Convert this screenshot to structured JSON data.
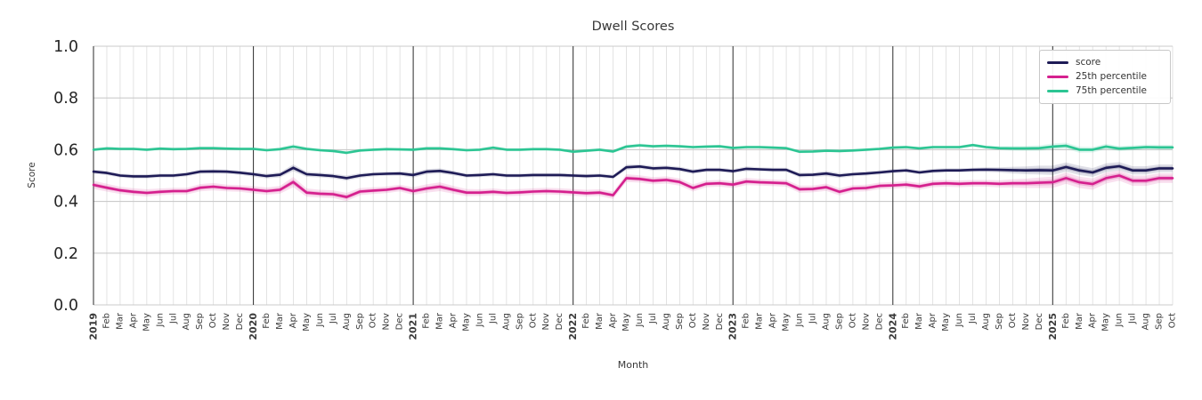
{
  "meta": {
    "title": "Dwell Scores",
    "xlabel": "Month",
    "ylabel": "Score"
  },
  "colors": {
    "score": "#1e1b56",
    "p25": "#d5208e",
    "p75": "#2cc593",
    "grid_minor": "#dcdcdc",
    "grid_major_h": "#cbcbcb",
    "year_line": "#3d3d3d",
    "tick_text": "#3a3a3a",
    "ytick_text": "#262626"
  },
  "chart_data": {
    "type": "line",
    "title": "Dwell Scores",
    "xlabel": "Month",
    "ylabel": "Score",
    "ylim": [
      0.0,
      1.0
    ],
    "yticks": [
      0.0,
      0.2,
      0.4,
      0.6,
      0.8,
      1.0
    ],
    "grid": true,
    "legend_position": "upper right",
    "x_labels": [
      "2019",
      "Feb",
      "Mar",
      "Apr",
      "May",
      "Jun",
      "Jul",
      "Aug",
      "Sep",
      "Oct",
      "Nov",
      "Dec",
      "2020",
      "Feb",
      "Mar",
      "Apr",
      "May",
      "Jun",
      "Jul",
      "Aug",
      "Sep",
      "Oct",
      "Nov",
      "Dec",
      "2021",
      "Feb",
      "Mar",
      "Apr",
      "May",
      "Jun",
      "Jul",
      "Aug",
      "Sep",
      "Oct",
      "Nov",
      "Dec",
      "2022",
      "Feb",
      "Mar",
      "Apr",
      "May",
      "Jun",
      "Jul",
      "Aug",
      "Sep",
      "Oct",
      "Nov",
      "Dec",
      "2023",
      "Feb",
      "Mar",
      "Apr",
      "May",
      "Jun",
      "Jul",
      "Aug",
      "Sep",
      "Oct",
      "Nov",
      "Dec",
      "2024",
      "Feb",
      "Mar",
      "Apr",
      "May",
      "Jun",
      "Jul",
      "Aug",
      "Sep",
      "Oct",
      "Nov",
      "Dec",
      "2025",
      "Feb",
      "Mar",
      "Apr",
      "May",
      "Jun",
      "Jul",
      "Aug",
      "Sep",
      "Oct"
    ],
    "series": [
      {
        "name": "score",
        "color": "#1e1b56",
        "values": [
          0.515,
          0.51,
          0.5,
          0.497,
          0.497,
          0.5,
          0.5,
          0.505,
          0.515,
          0.516,
          0.515,
          0.511,
          0.505,
          0.498,
          0.503,
          0.53,
          0.505,
          0.502,
          0.498,
          0.49,
          0.5,
          0.505,
          0.507,
          0.508,
          0.502,
          0.515,
          0.518,
          0.51,
          0.5,
          0.502,
          0.505,
          0.5,
          0.5,
          0.502,
          0.502,
          0.502,
          0.5,
          0.498,
          0.5,
          0.495,
          0.532,
          0.535,
          0.528,
          0.53,
          0.525,
          0.515,
          0.522,
          0.522,
          0.517,
          0.526,
          0.524,
          0.522,
          0.522,
          0.502,
          0.503,
          0.508,
          0.5,
          0.505,
          0.508,
          0.512,
          0.517,
          0.52,
          0.512,
          0.518,
          0.52,
          0.52,
          0.522,
          0.523,
          0.522,
          0.521,
          0.52,
          0.521,
          0.52,
          0.533,
          0.52,
          0.512,
          0.53,
          0.536,
          0.52,
          0.52,
          0.528,
          0.528
        ],
        "band_halfwidth": [
          0.008,
          0.008,
          0.008,
          0.008,
          0.008,
          0.008,
          0.008,
          0.008,
          0.008,
          0.008,
          0.008,
          0.008,
          0.009,
          0.009,
          0.01,
          0.013,
          0.01,
          0.009,
          0.009,
          0.01,
          0.009,
          0.008,
          0.008,
          0.008,
          0.01,
          0.01,
          0.01,
          0.009,
          0.008,
          0.008,
          0.008,
          0.008,
          0.008,
          0.008,
          0.008,
          0.008,
          0.008,
          0.008,
          0.008,
          0.008,
          0.01,
          0.009,
          0.009,
          0.009,
          0.009,
          0.009,
          0.008,
          0.008,
          0.008,
          0.009,
          0.008,
          0.008,
          0.008,
          0.009,
          0.008,
          0.01,
          0.009,
          0.008,
          0.008,
          0.008,
          0.008,
          0.008,
          0.008,
          0.008,
          0.008,
          0.008,
          0.008,
          0.009,
          0.01,
          0.013,
          0.015,
          0.017,
          0.018,
          0.018,
          0.018,
          0.017,
          0.017,
          0.016,
          0.016,
          0.016,
          0.015,
          0.015
        ]
      },
      {
        "name": "25th percentile",
        "color": "#d5208e",
        "values": [
          0.464,
          0.453,
          0.443,
          0.437,
          0.433,
          0.437,
          0.44,
          0.44,
          0.453,
          0.457,
          0.452,
          0.45,
          0.445,
          0.44,
          0.445,
          0.475,
          0.434,
          0.43,
          0.428,
          0.417,
          0.438,
          0.442,
          0.445,
          0.452,
          0.44,
          0.45,
          0.457,
          0.445,
          0.434,
          0.434,
          0.437,
          0.433,
          0.435,
          0.438,
          0.44,
          0.438,
          0.435,
          0.432,
          0.434,
          0.424,
          0.49,
          0.487,
          0.48,
          0.483,
          0.475,
          0.452,
          0.468,
          0.47,
          0.465,
          0.477,
          0.474,
          0.472,
          0.47,
          0.447,
          0.448,
          0.455,
          0.437,
          0.45,
          0.452,
          0.46,
          0.462,
          0.465,
          0.458,
          0.468,
          0.47,
          0.468,
          0.47,
          0.47,
          0.468,
          0.47,
          0.47,
          0.472,
          0.474,
          0.49,
          0.474,
          0.467,
          0.49,
          0.5,
          0.48,
          0.48,
          0.49,
          0.49
        ],
        "band_halfwidth": [
          0.016,
          0.015,
          0.014,
          0.014,
          0.014,
          0.013,
          0.013,
          0.013,
          0.014,
          0.014,
          0.013,
          0.013,
          0.014,
          0.014,
          0.015,
          0.02,
          0.016,
          0.015,
          0.015,
          0.016,
          0.014,
          0.013,
          0.013,
          0.013,
          0.015,
          0.016,
          0.017,
          0.015,
          0.014,
          0.013,
          0.013,
          0.013,
          0.013,
          0.013,
          0.013,
          0.013,
          0.013,
          0.013,
          0.013,
          0.014,
          0.015,
          0.014,
          0.014,
          0.014,
          0.014,
          0.014,
          0.013,
          0.013,
          0.013,
          0.014,
          0.013,
          0.013,
          0.013,
          0.014,
          0.013,
          0.014,
          0.014,
          0.013,
          0.013,
          0.013,
          0.013,
          0.013,
          0.013,
          0.013,
          0.013,
          0.013,
          0.013,
          0.013,
          0.014,
          0.016,
          0.018,
          0.02,
          0.022,
          0.022,
          0.022,
          0.022,
          0.021,
          0.02,
          0.02,
          0.02,
          0.019,
          0.019
        ]
      },
      {
        "name": "75th percentile",
        "color": "#2cc593",
        "values": [
          0.6,
          0.605,
          0.603,
          0.603,
          0.6,
          0.604,
          0.602,
          0.603,
          0.606,
          0.606,
          0.604,
          0.603,
          0.603,
          0.598,
          0.602,
          0.612,
          0.603,
          0.598,
          0.595,
          0.588,
          0.597,
          0.6,
          0.602,
          0.601,
          0.6,
          0.605,
          0.605,
          0.602,
          0.598,
          0.6,
          0.608,
          0.6,
          0.6,
          0.602,
          0.602,
          0.6,
          0.592,
          0.596,
          0.6,
          0.593,
          0.612,
          0.617,
          0.613,
          0.615,
          0.613,
          0.61,
          0.612,
          0.613,
          0.607,
          0.61,
          0.61,
          0.608,
          0.606,
          0.592,
          0.593,
          0.596,
          0.595,
          0.597,
          0.6,
          0.603,
          0.608,
          0.61,
          0.605,
          0.61,
          0.61,
          0.61,
          0.618,
          0.61,
          0.606,
          0.605,
          0.605,
          0.606,
          0.612,
          0.615,
          0.6,
          0.6,
          0.612,
          0.604,
          0.607,
          0.61,
          0.609,
          0.609
        ],
        "band_halfwidth": [
          0.006,
          0.006,
          0.006,
          0.006,
          0.006,
          0.006,
          0.006,
          0.006,
          0.006,
          0.006,
          0.006,
          0.006,
          0.006,
          0.006,
          0.007,
          0.009,
          0.007,
          0.006,
          0.006,
          0.007,
          0.006,
          0.006,
          0.006,
          0.006,
          0.007,
          0.007,
          0.007,
          0.006,
          0.006,
          0.006,
          0.007,
          0.006,
          0.006,
          0.006,
          0.006,
          0.006,
          0.006,
          0.006,
          0.006,
          0.006,
          0.007,
          0.007,
          0.006,
          0.007,
          0.006,
          0.006,
          0.006,
          0.006,
          0.006,
          0.006,
          0.006,
          0.006,
          0.006,
          0.006,
          0.006,
          0.006,
          0.006,
          0.006,
          0.006,
          0.006,
          0.006,
          0.006,
          0.006,
          0.006,
          0.006,
          0.006,
          0.006,
          0.006,
          0.008,
          0.009,
          0.01,
          0.011,
          0.012,
          0.012,
          0.012,
          0.011,
          0.011,
          0.01,
          0.01,
          0.01,
          0.01,
          0.01
        ]
      }
    ]
  }
}
